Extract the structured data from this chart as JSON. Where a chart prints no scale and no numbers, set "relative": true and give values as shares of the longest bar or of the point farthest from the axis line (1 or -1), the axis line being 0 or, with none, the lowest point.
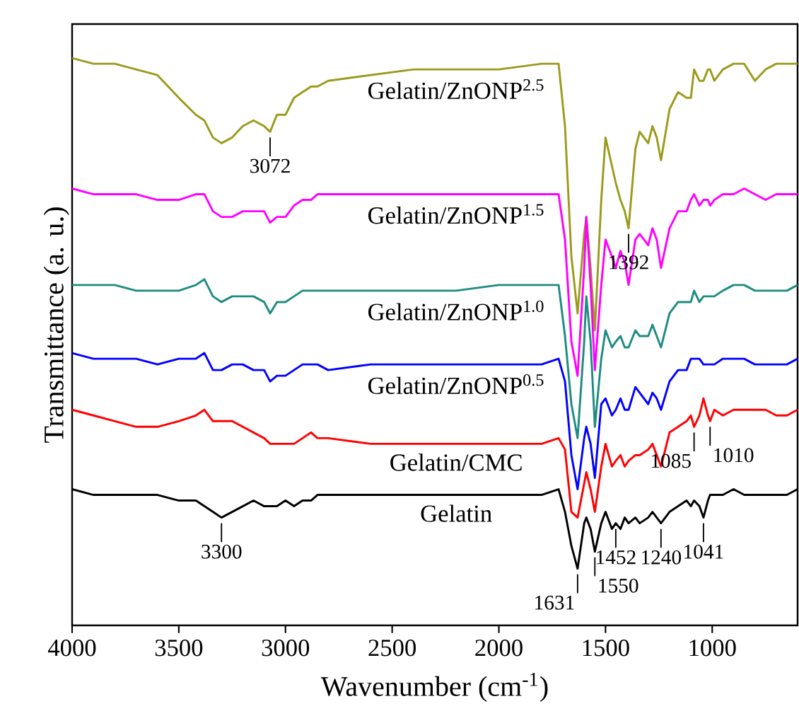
{
  "chart_data": {
    "type": "line",
    "relative": true,
    "xlabel": "Wavenumber (cm$^{-1}$)",
    "ylabel": "Transmittance (a. u.)",
    "xlim": [
      4000,
      600
    ],
    "xticks": [
      4000,
      3500,
      3000,
      2500,
      2000,
      1500,
      1000
    ],
    "marker": "none",
    "x": [
      4000,
      3900,
      3800,
      3700,
      3600,
      3500,
      3420,
      3380,
      3340,
      3300,
      3250,
      3200,
      3150,
      3100,
      3072,
      3040,
      3000,
      2960,
      2920,
      2880,
      2850,
      2800,
      2600,
      2400,
      2200,
      2000,
      1800,
      1720,
      1690,
      1660,
      1631,
      1600,
      1590,
      1570,
      1550,
      1520,
      1500,
      1470,
      1452,
      1430,
      1410,
      1392,
      1360,
      1340,
      1300,
      1280,
      1260,
      1240,
      1200,
      1160,
      1120,
      1100,
      1085,
      1060,
      1041,
      1020,
      1010,
      990,
      950,
      900,
      850,
      800,
      750,
      700,
      650,
      600
    ],
    "series": [
      {
        "name": "Gelatin/ZnONP$^{2.5}$",
        "color": "#9c9a1c",
        "values": [
          1.0,
          0.99,
          0.99,
          0.98,
          0.97,
          0.93,
          0.9,
          0.89,
          0.86,
          0.85,
          0.86,
          0.88,
          0.89,
          0.88,
          0.87,
          0.9,
          0.9,
          0.93,
          0.94,
          0.95,
          0.95,
          0.96,
          0.97,
          0.98,
          0.98,
          0.98,
          0.99,
          0.99,
          0.88,
          0.65,
          0.55,
          0.69,
          0.72,
          0.63,
          0.52,
          0.75,
          0.86,
          0.81,
          0.78,
          0.75,
          0.73,
          0.7,
          0.84,
          0.87,
          0.85,
          0.88,
          0.86,
          0.82,
          0.91,
          0.94,
          0.93,
          0.93,
          0.98,
          0.96,
          0.96,
          0.98,
          0.98,
          0.96,
          0.98,
          0.99,
          0.99,
          0.96,
          0.98,
          0.99,
          0.99,
          0.99
        ]
      },
      {
        "name": "Gelatin/ZnONP$^{1.5}$",
        "color": "#ff00ff",
        "values": [
          0.77,
          0.76,
          0.76,
          0.76,
          0.75,
          0.75,
          0.76,
          0.76,
          0.73,
          0.72,
          0.72,
          0.73,
          0.73,
          0.73,
          0.71,
          0.72,
          0.72,
          0.74,
          0.75,
          0.75,
          0.76,
          0.76,
          0.76,
          0.76,
          0.76,
          0.76,
          0.76,
          0.76,
          0.68,
          0.5,
          0.44,
          0.63,
          0.72,
          0.6,
          0.45,
          0.6,
          0.68,
          0.65,
          0.63,
          0.66,
          0.64,
          0.6,
          0.68,
          0.69,
          0.67,
          0.7,
          0.68,
          0.63,
          0.7,
          0.73,
          0.73,
          0.75,
          0.76,
          0.74,
          0.75,
          0.75,
          0.74,
          0.75,
          0.76,
          0.76,
          0.77,
          0.76,
          0.75,
          0.76,
          0.76,
          0.76
        ]
      },
      {
        "name": "Gelatin/ZnONP$^{1.0}$",
        "color": "#1e8c80",
        "values": [
          0.6,
          0.6,
          0.6,
          0.59,
          0.59,
          0.59,
          0.6,
          0.61,
          0.58,
          0.57,
          0.58,
          0.58,
          0.58,
          0.57,
          0.55,
          0.57,
          0.57,
          0.58,
          0.59,
          0.59,
          0.59,
          0.59,
          0.59,
          0.59,
          0.59,
          0.6,
          0.6,
          0.6,
          0.51,
          0.39,
          0.33,
          0.5,
          0.58,
          0.5,
          0.35,
          0.47,
          0.52,
          0.49,
          0.5,
          0.51,
          0.49,
          0.49,
          0.52,
          0.51,
          0.51,
          0.53,
          0.51,
          0.49,
          0.55,
          0.57,
          0.57,
          0.57,
          0.59,
          0.57,
          0.58,
          0.58,
          0.58,
          0.58,
          0.59,
          0.6,
          0.6,
          0.59,
          0.59,
          0.59,
          0.59,
          0.6
        ]
      },
      {
        "name": "Gelatin/ZnONP$^{0.5}$",
        "color": "#0000ff",
        "values": [
          0.48,
          0.47,
          0.47,
          0.47,
          0.46,
          0.47,
          0.47,
          0.48,
          0.45,
          0.45,
          0.46,
          0.46,
          0.45,
          0.45,
          0.43,
          0.44,
          0.44,
          0.45,
          0.46,
          0.46,
          0.46,
          0.45,
          0.46,
          0.46,
          0.46,
          0.46,
          0.46,
          0.47,
          0.43,
          0.3,
          0.24,
          0.33,
          0.35,
          0.32,
          0.26,
          0.39,
          0.4,
          0.37,
          0.38,
          0.4,
          0.38,
          0.38,
          0.42,
          0.41,
          0.39,
          0.41,
          0.4,
          0.38,
          0.43,
          0.45,
          0.45,
          0.47,
          0.47,
          0.47,
          0.46,
          0.46,
          0.46,
          0.46,
          0.47,
          0.47,
          0.47,
          0.46,
          0.46,
          0.46,
          0.46,
          0.47
        ]
      },
      {
        "name": "Gelatin/CMC",
        "color": "#ff0000",
        "values": [
          0.38,
          0.37,
          0.36,
          0.35,
          0.35,
          0.36,
          0.37,
          0.38,
          0.36,
          0.36,
          0.36,
          0.35,
          0.34,
          0.33,
          0.32,
          0.32,
          0.32,
          0.32,
          0.33,
          0.34,
          0.33,
          0.33,
          0.32,
          0.32,
          0.32,
          0.32,
          0.32,
          0.33,
          0.31,
          0.2,
          0.19,
          0.25,
          0.27,
          0.24,
          0.2,
          0.28,
          0.32,
          0.28,
          0.29,
          0.3,
          0.28,
          0.29,
          0.3,
          0.3,
          0.31,
          0.32,
          0.3,
          0.28,
          0.34,
          0.35,
          0.36,
          0.37,
          0.35,
          0.37,
          0.4,
          0.37,
          0.36,
          0.38,
          0.37,
          0.38,
          0.38,
          0.38,
          0.38,
          0.37,
          0.37,
          0.38
        ]
      },
      {
        "name": "Gelatin",
        "color": "#000000",
        "values": [
          0.24,
          0.23,
          0.23,
          0.23,
          0.23,
          0.22,
          0.22,
          0.21,
          0.2,
          0.19,
          0.2,
          0.21,
          0.22,
          0.21,
          0.21,
          0.21,
          0.22,
          0.21,
          0.22,
          0.22,
          0.23,
          0.23,
          0.23,
          0.23,
          0.23,
          0.23,
          0.23,
          0.24,
          0.2,
          0.14,
          0.1,
          0.18,
          0.19,
          0.17,
          0.13,
          0.18,
          0.2,
          0.17,
          0.18,
          0.17,
          0.19,
          0.18,
          0.19,
          0.18,
          0.19,
          0.2,
          0.19,
          0.18,
          0.2,
          0.21,
          0.22,
          0.21,
          0.22,
          0.21,
          0.19,
          0.22,
          0.23,
          0.23,
          0.23,
          0.24,
          0.23,
          0.23,
          0.23,
          0.23,
          0.23,
          0.24
        ]
      }
    ],
    "annotations": [
      {
        "text": "3072",
        "x": 3072,
        "y": 0.87
      },
      {
        "text": "1392",
        "x": 1392,
        "y": 0.7
      },
      {
        "text": "3300",
        "x": 3300,
        "y": 0.19
      },
      {
        "text": "1550",
        "x": 1550,
        "y": 0.13
      },
      {
        "text": "1631",
        "x": 1631,
        "y": 0.1
      },
      {
        "text": "1452",
        "x": 1452,
        "y": 0.18
      },
      {
        "text": "1240",
        "x": 1240,
        "y": 0.18
      },
      {
        "text": "1041",
        "x": 1041,
        "y": 0.19
      },
      {
        "text": "1085",
        "x": 1085,
        "y": 0.35
      },
      {
        "text": "1010",
        "x": 1010,
        "y": 0.36
      }
    ]
  }
}
